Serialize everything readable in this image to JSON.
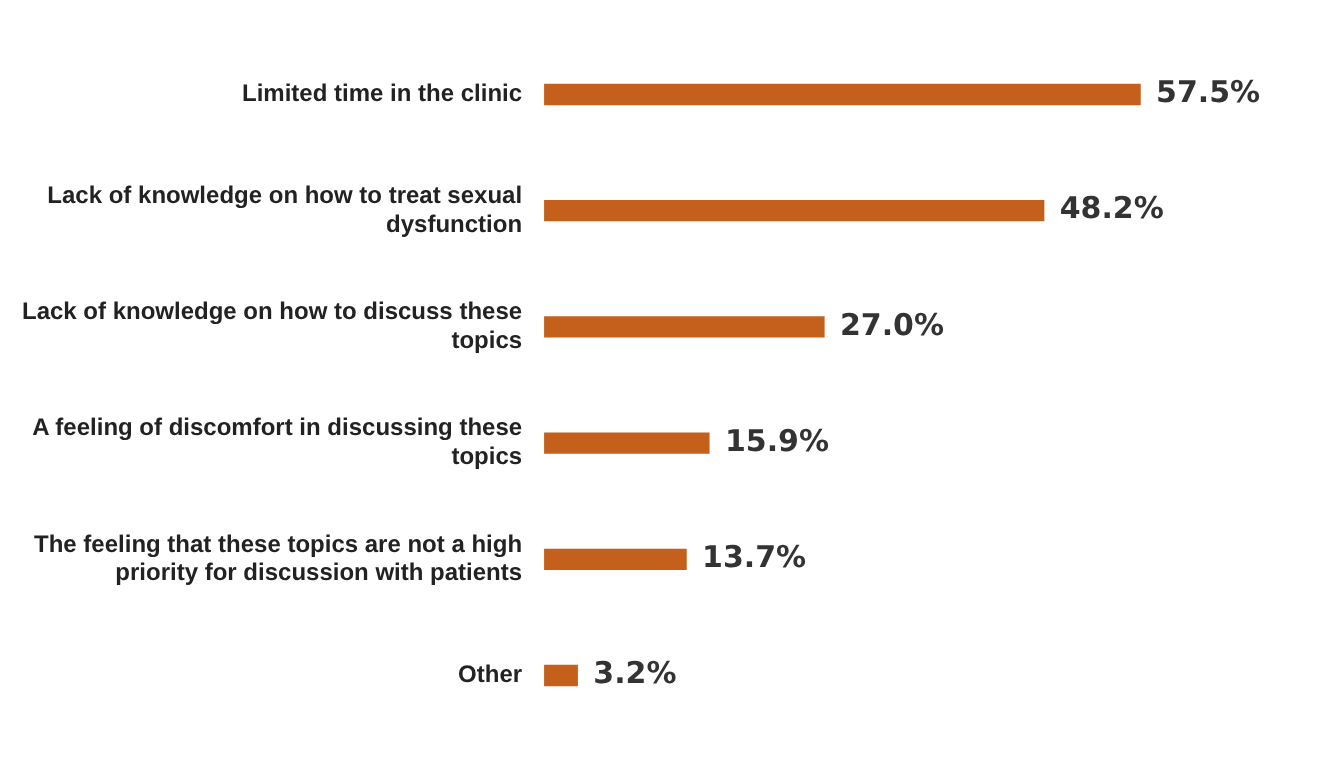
{
  "chart_data": {
    "type": "bar",
    "orientation": "horizontal",
    "categories": [
      "Limited time in the clinic",
      "Lack of knowledge on how to treat sexual dysfunction",
      "Lack of knowledge on how to discuss these topics",
      "A feeling of discomfort in discussing these topics",
      "The feeling that these topics are not a high priority for discussion with patients",
      "Other"
    ],
    "values": [
      57.5,
      48.2,
      27.0,
      15.9,
      13.7,
      3.2
    ],
    "value_labels": [
      "57.5%",
      "48.2%",
      "27.0%",
      "15.9%",
      "13.7%",
      "3.2%"
    ],
    "color": "#c4601c"
  }
}
